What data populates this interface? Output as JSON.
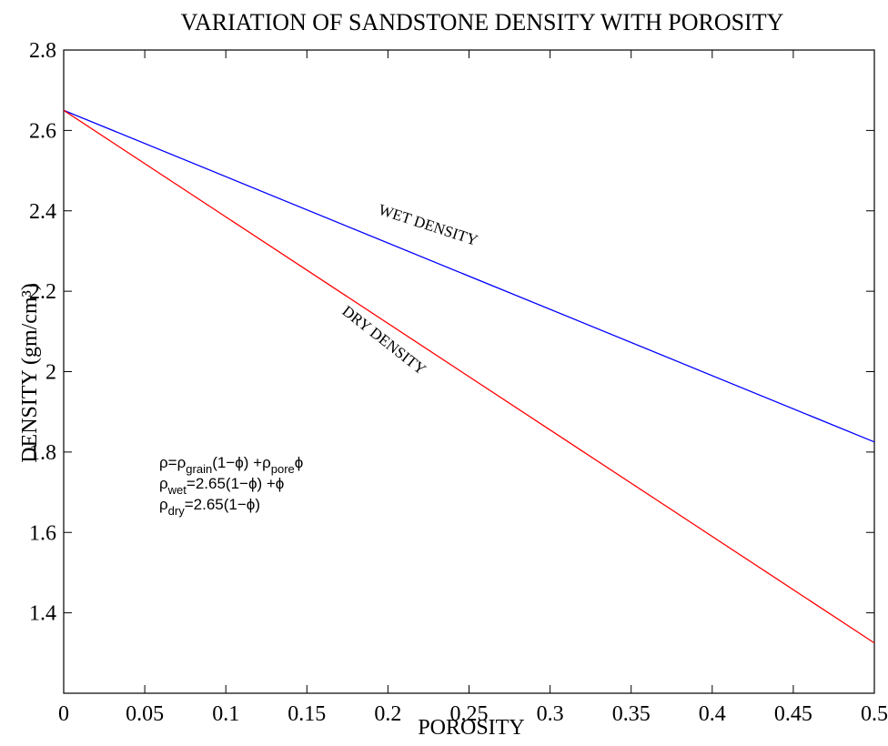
{
  "chart_data": {
    "type": "line",
    "title": "VARIATION OF SANDSTONE DENSITY WITH POROSITY",
    "xlabel": "POROSITY",
    "ylabel": "DENSITY (gm/cm³)",
    "xlim": [
      0,
      0.5
    ],
    "ylim": [
      1.2,
      2.8
    ],
    "xticks": [
      "0",
      "0.05",
      "0.1",
      "0.15",
      "0.2",
      "0.25",
      "0.3",
      "0.35",
      "0.4",
      "0.45",
      "0.5"
    ],
    "yticks": [
      "1.4",
      "1.6",
      "1.8",
      "2",
      "2.2",
      "2.4",
      "2.6",
      "2.8"
    ],
    "grid": false,
    "series": [
      {
        "name": "WET DENSITY",
        "color": "#0000ff",
        "x": [
          0,
          0.5
        ],
        "y": [
          2.65,
          1.825
        ]
      },
      {
        "name": "DRY DENSITY",
        "color": "#ff0000",
        "x": [
          0,
          0.5
        ],
        "y": [
          2.65,
          1.325
        ]
      }
    ],
    "annotations": [
      "WET DENSITY",
      "DRY DENSITY"
    ],
    "equations": [
      {
        "parts": [
          [
            "ρ=ρ",
            ""
          ],
          [
            "grain",
            "sub"
          ],
          [
            "(1−ϕ) +ρ",
            ""
          ],
          [
            "pore",
            "sub"
          ],
          [
            "ϕ",
            ""
          ]
        ]
      },
      {
        "parts": [
          [
            "ρ",
            ""
          ],
          [
            "wet",
            "sub"
          ],
          [
            "=2.65(1−ϕ) +ϕ",
            ""
          ]
        ]
      },
      {
        "parts": [
          [
            "ρ",
            ""
          ],
          [
            "dry",
            "sub"
          ],
          [
            "=2.65(1−ϕ)",
            ""
          ]
        ]
      }
    ]
  }
}
